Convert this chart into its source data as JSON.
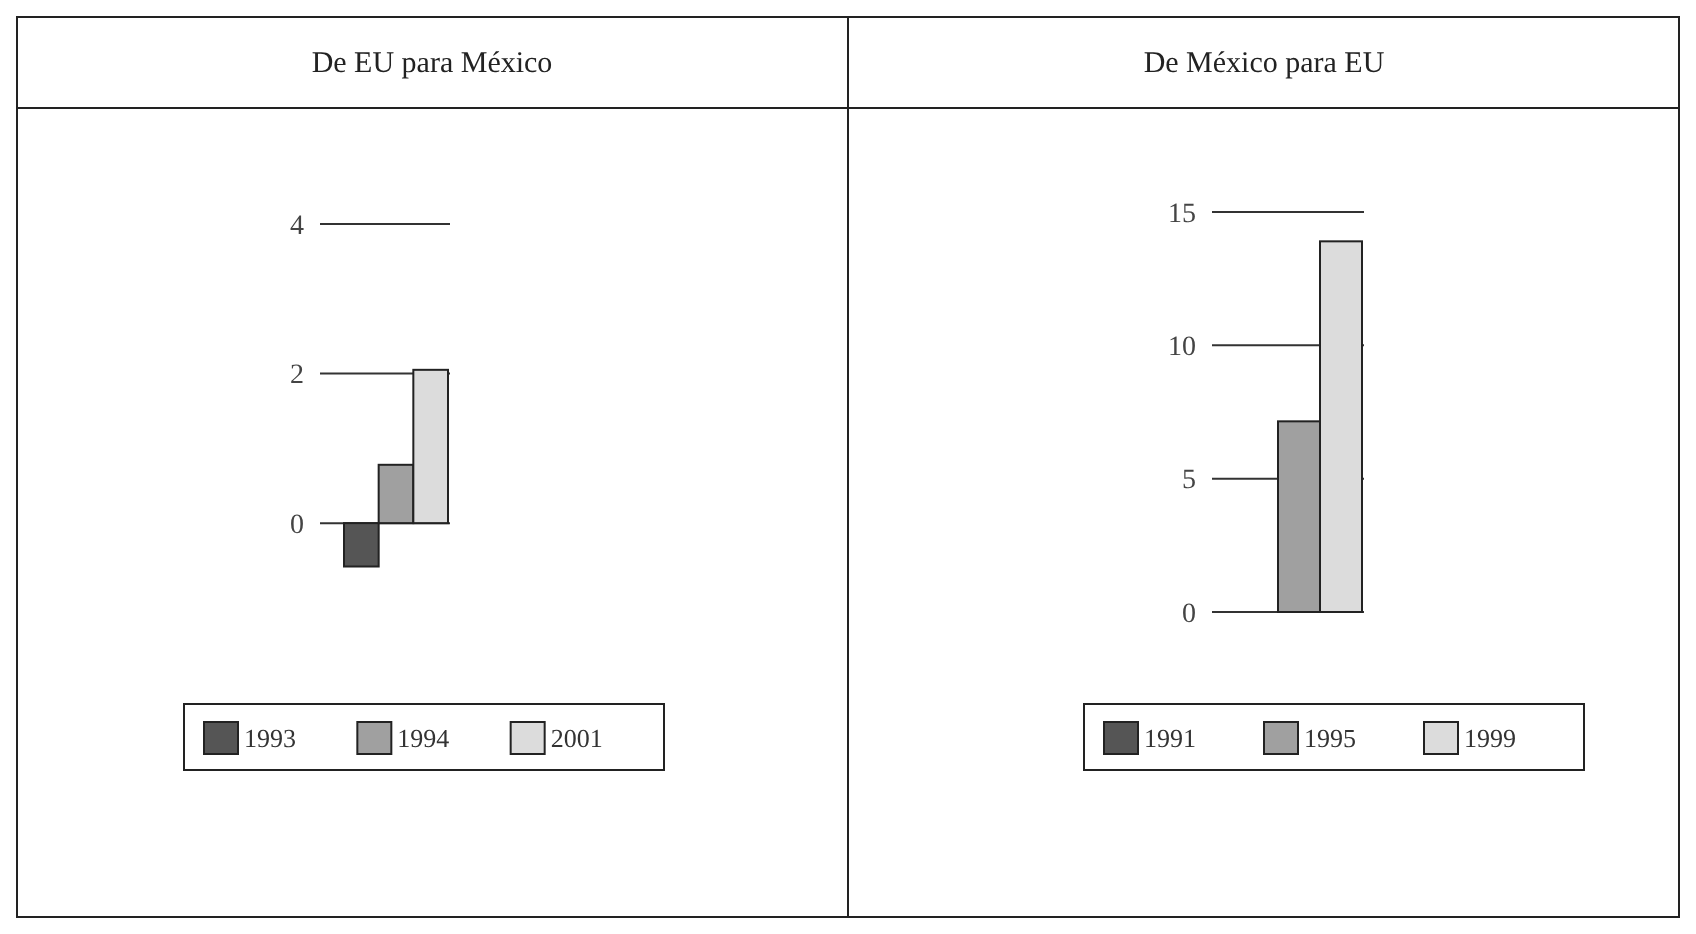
{
  "chart_data": [
    {
      "type": "bar",
      "title": "De EU para México",
      "categories": [
        null
      ],
      "series": [
        {
          "name": "1993",
          "color": "#555555",
          "values": [
            -0.58
          ]
        },
        {
          "name": "1994",
          "color": "#a0a0a0",
          "values": [
            0.78
          ]
        },
        {
          "name": "2001",
          "color": "#dcdcdc",
          "values": [
            2.05
          ]
        }
      ],
      "ylim": [
        -0.6,
        4
      ],
      "yticks": [
        0,
        2,
        4
      ],
      "grid": "y",
      "legend": "bottom"
    },
    {
      "type": "bar",
      "title": "De México para EU",
      "categories": [
        null
      ],
      "series": [
        {
          "name": "1991",
          "color": "#555555",
          "values": [
            0
          ]
        },
        {
          "name": "1995",
          "color": "#a0a0a0",
          "values": [
            7.15
          ]
        },
        {
          "name": "1999",
          "color": "#dcdcdc",
          "values": [
            13.9
          ]
        }
      ],
      "ylim": [
        0,
        15
      ],
      "yticks": [
        0,
        5,
        10,
        15
      ],
      "grid": "y",
      "legend": "bottom"
    }
  ]
}
